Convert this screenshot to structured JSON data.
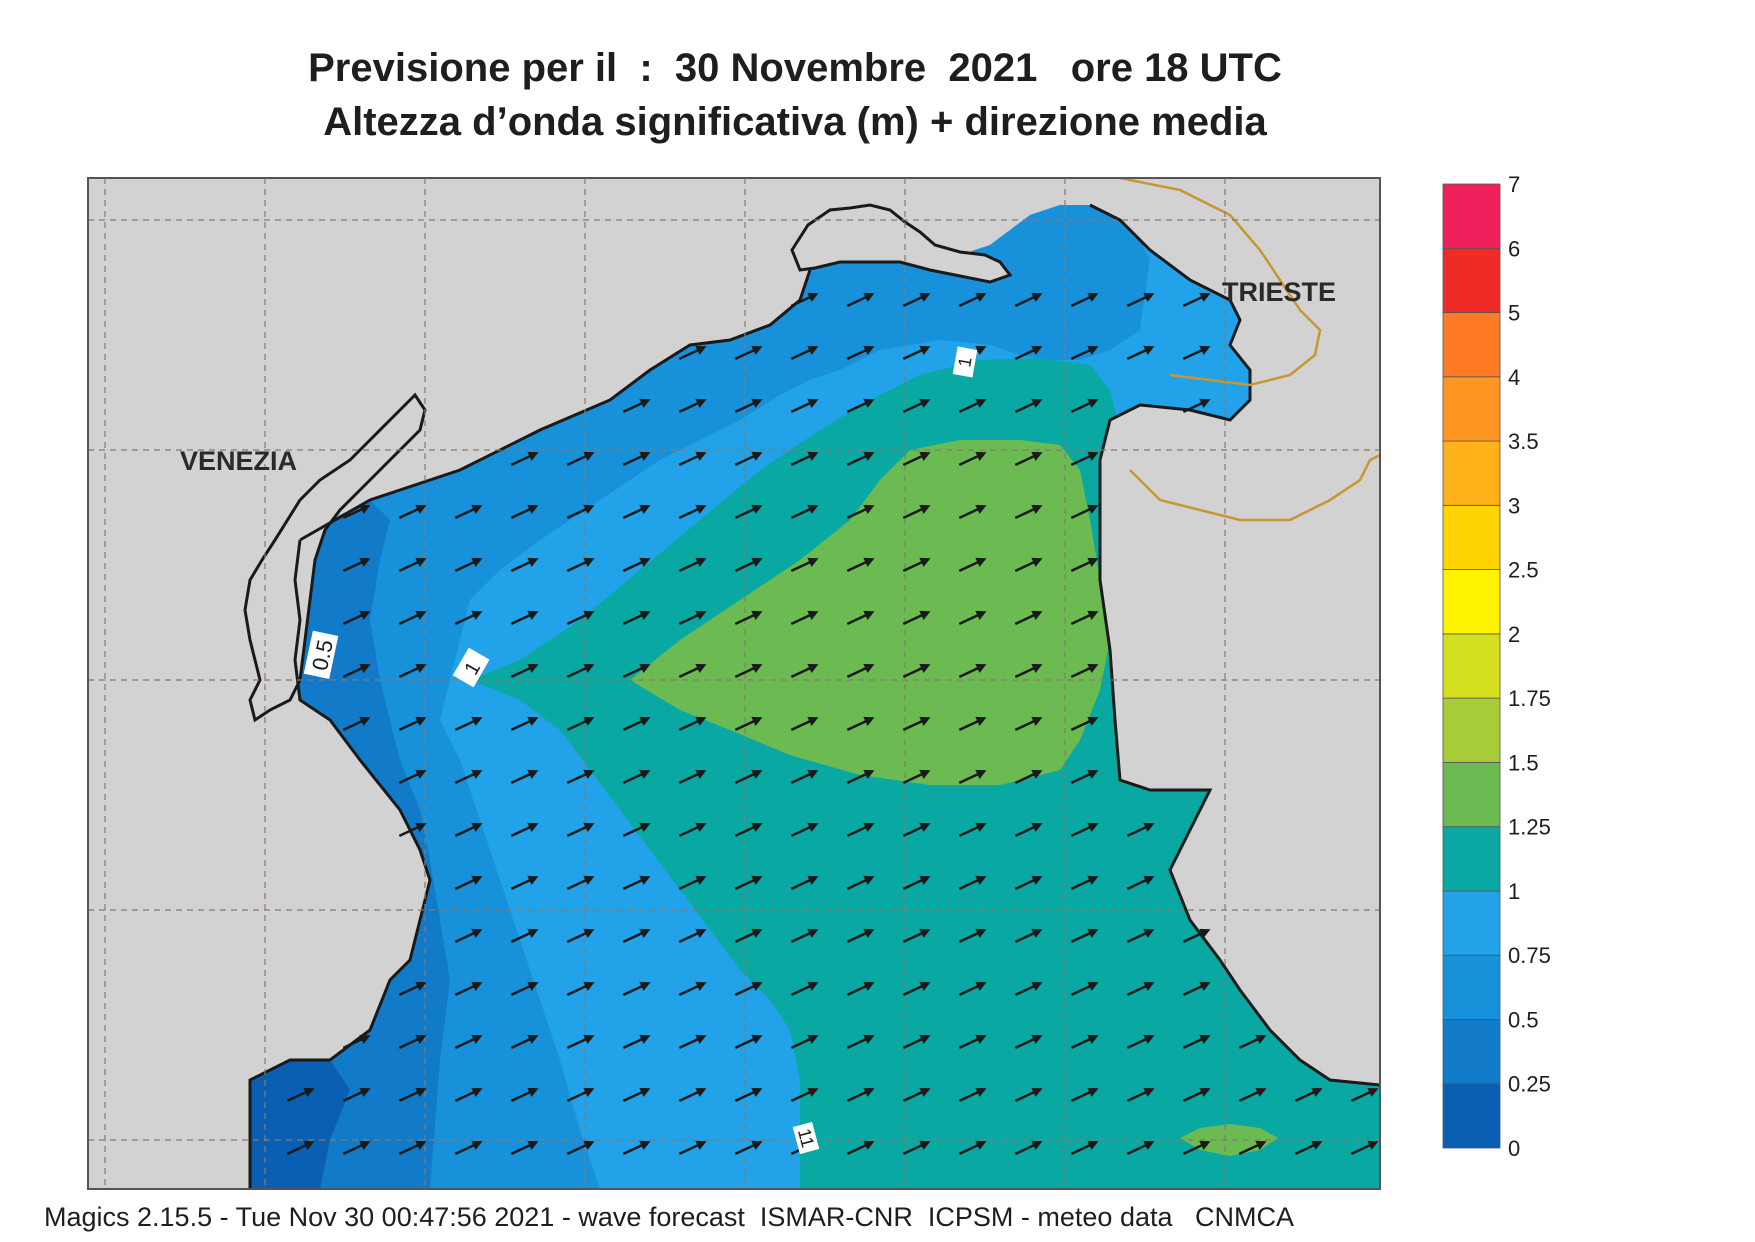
{
  "header": {
    "title_line1": "Previsione per il  :  30 Novembre  2021   ore 18 UTC",
    "title_line2": "Altezza d’onda significativa (m) + direzione media"
  },
  "map": {
    "cities": [
      {
        "name": "VENEZIA"
      },
      {
        "name": "TRIESTE"
      }
    ],
    "contour_labels": [
      "0.5",
      "1",
      "1",
      "11"
    ],
    "land_color": "#d2d2d2",
    "coast_color": "#1a1a1a",
    "border_color": "#c89632",
    "arrow_direction": "north-east"
  },
  "legend": {
    "levels": [
      "0",
      "0.25",
      "0.5",
      "0.75",
      "1",
      "1.25",
      "1.5",
      "1.75",
      "2",
      "2.5",
      "3",
      "3.5",
      "4",
      "5",
      "6",
      "7"
    ],
    "colors": [
      "#0a5fb3",
      "#117bc9",
      "#1891db",
      "#22a2e8",
      "#0aa8a3",
      "#6cbb52",
      "#a8cb38",
      "#d4df1e",
      "#fff400",
      "#ffd400",
      "#ffb21a",
      "#ff9622",
      "#ff7a24",
      "#ef2b26",
      "#f0205d"
    ]
  },
  "footer": {
    "text": "Magics 2.15.5 - Tue Nov 30 00:47:56 2021 - wave forecast  ISMAR-CNR  ICPSM - meteo data   CNMCA"
  }
}
